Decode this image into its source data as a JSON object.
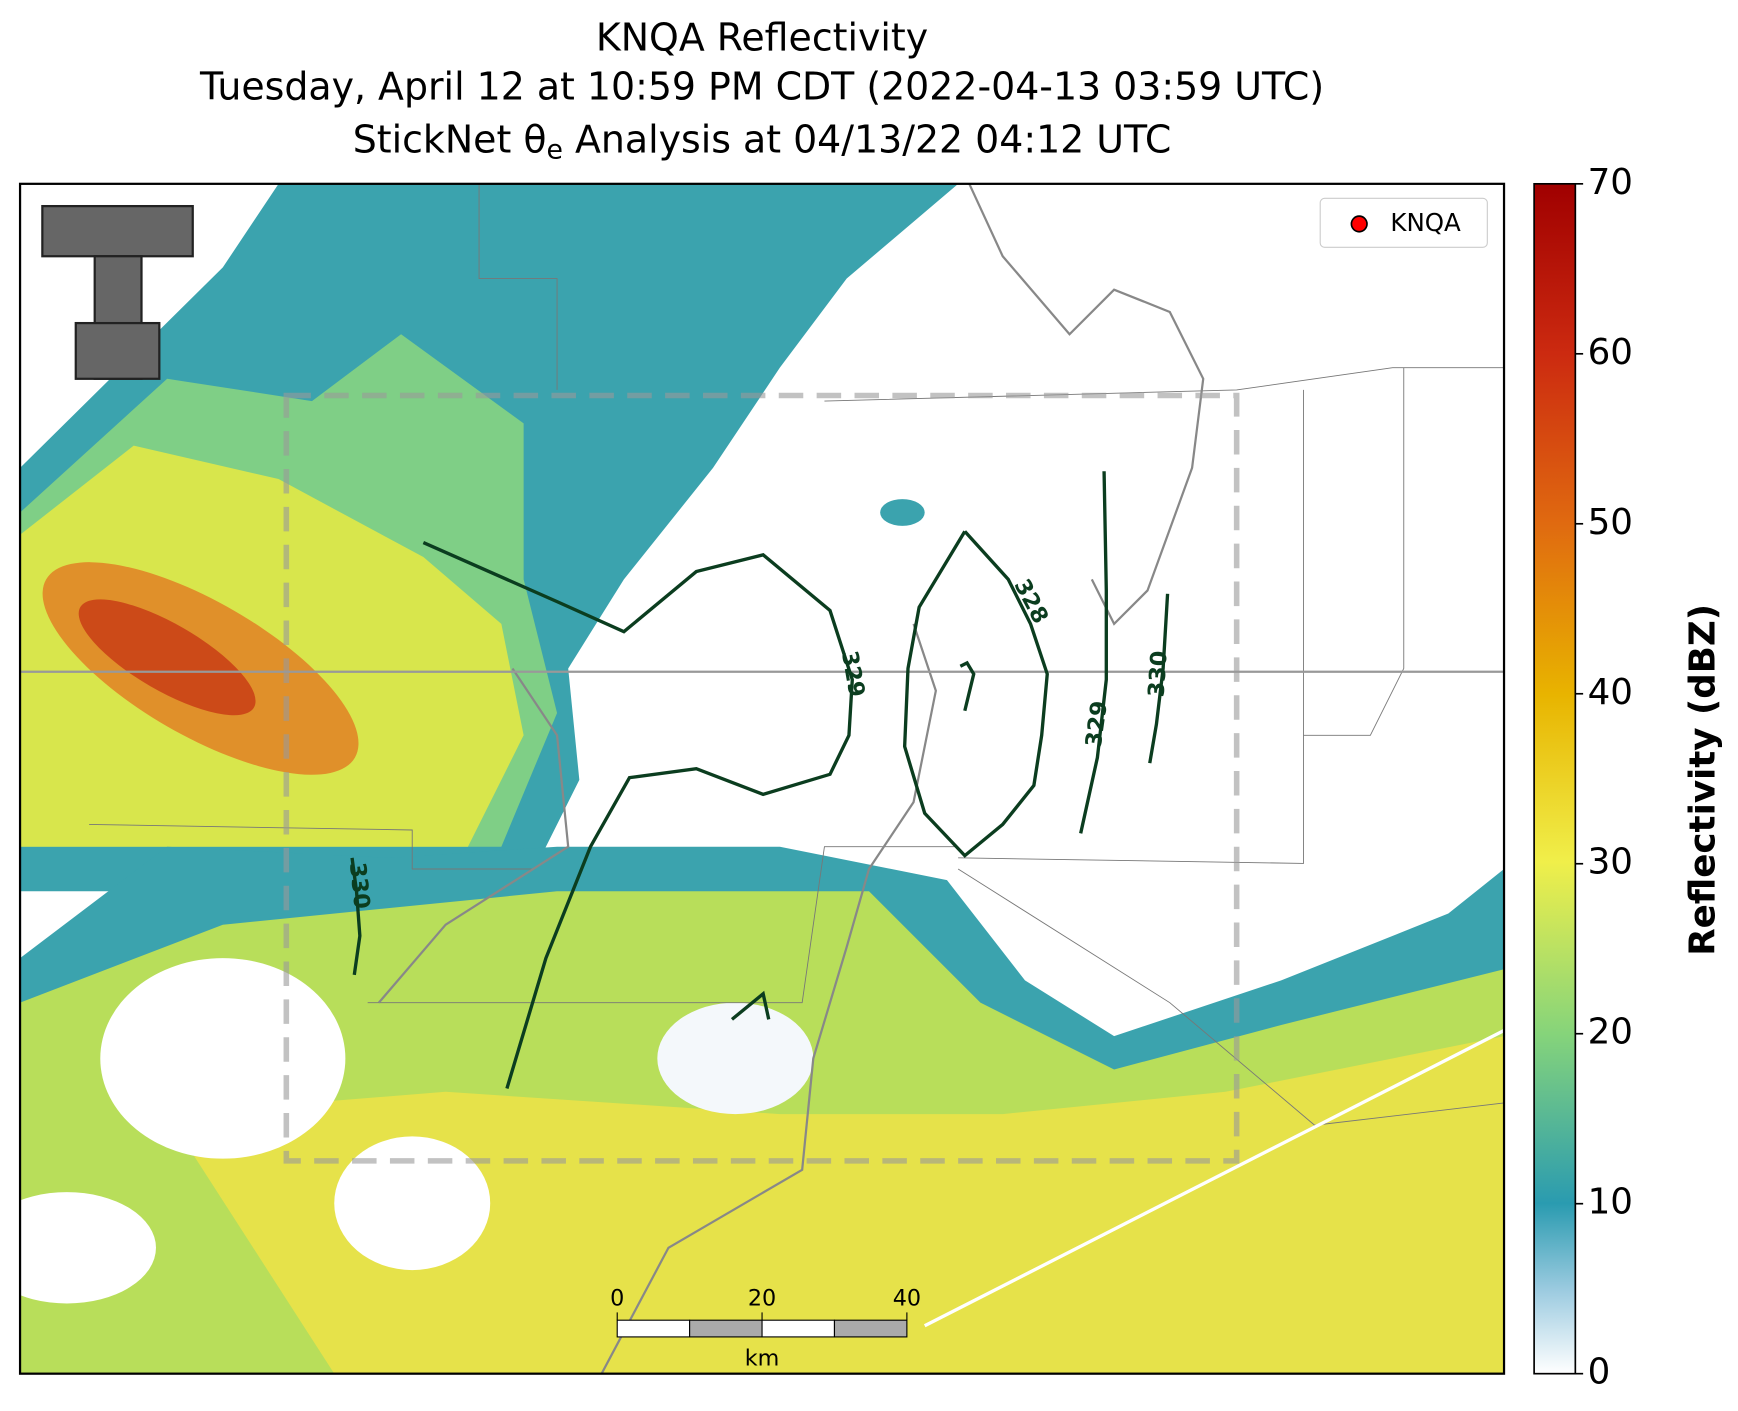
{
  "title": {
    "line1": "KNQA Reflectivity",
    "line2": "Tuesday, April 12 at 10:59 PM CDT (2022-04-13 03:59 UTC)",
    "line3": {
      "prefix": "StickNet θ",
      "subscript": "e",
      "suffix": " Analysis at 04/13/22 04:12 UTC"
    }
  },
  "legend": {
    "label": "KNQA",
    "color": "#ff0000"
  },
  "contours": [
    {
      "label": "329"
    },
    {
      "label": "328"
    },
    {
      "label": "329"
    },
    {
      "label": "330"
    },
    {
      "label": "330"
    }
  ],
  "scale_bar": {
    "ticks": [
      0,
      20,
      40
    ],
    "unit": "km"
  },
  "colorbar": {
    "label": "Reflectivity (dBZ)",
    "lim": [
      0,
      70
    ],
    "ticks": [
      0,
      10,
      20,
      30,
      40,
      50,
      60,
      70
    ]
  }
}
